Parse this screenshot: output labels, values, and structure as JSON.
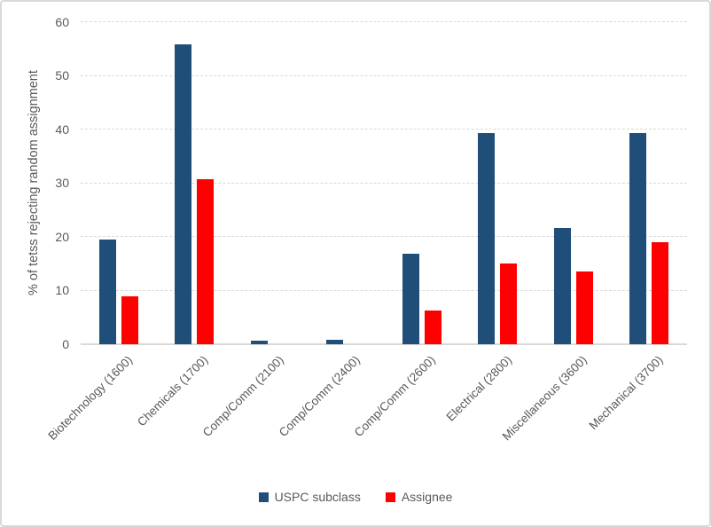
{
  "chart_data": {
    "type": "bar",
    "title": "",
    "xlabel": "",
    "ylabel": "% of tetss rejecting random assignment",
    "ylim": [
      0,
      60
    ],
    "yticks": [
      0,
      10,
      20,
      30,
      40,
      50,
      60
    ],
    "grid": true,
    "legend_position": "bottom",
    "categories": [
      "Biotechnology (1600)",
      "Chemicals (1700)",
      "Comp/Comm (2100)",
      "Comp/Comm (2400)",
      "Comp/Comm (2600)",
      "Electrical (2800)",
      "Miscellaneous (3600)",
      "Mechanical (3700)"
    ],
    "series": [
      {
        "name": "USPC subclass",
        "color": "#1F4E79",
        "values": [
          19.5,
          55.8,
          0.7,
          0.8,
          16.8,
          39.4,
          21.7,
          39.4
        ]
      },
      {
        "name": "Assignee",
        "color": "#FF0000",
        "values": [
          9.0,
          30.8,
          0,
          0,
          6.3,
          15.0,
          13.5,
          19.0
        ]
      }
    ]
  },
  "colors": {
    "axis_text": "#595959",
    "gridline": "#D9D9D9",
    "axis_line": "#D9D9D9",
    "frame_border": "#D9D9D9",
    "background": "#FFFFFF"
  }
}
